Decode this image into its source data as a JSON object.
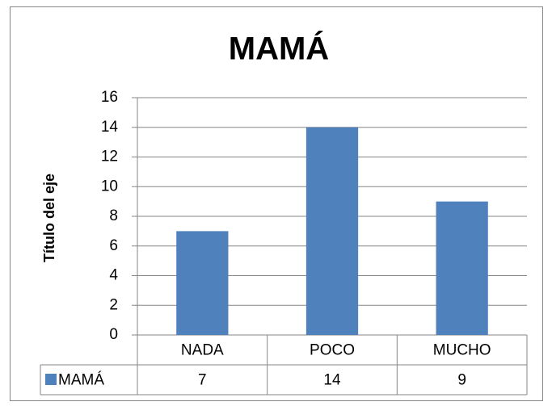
{
  "chart_data": {
    "type": "bar",
    "title": "MAMÁ",
    "y_label": "Título del eje",
    "categories": [
      "NADA",
      "POCO",
      "MUCHO"
    ],
    "series": [
      {
        "name": "MAMÁ",
        "color": "#4f81bd",
        "values": [
          7,
          14,
          9
        ]
      }
    ],
    "ylim": [
      0,
      16
    ],
    "yticks": [
      0,
      2,
      4,
      6,
      8,
      10,
      12,
      14,
      16
    ],
    "grid": true,
    "data_table": true
  }
}
